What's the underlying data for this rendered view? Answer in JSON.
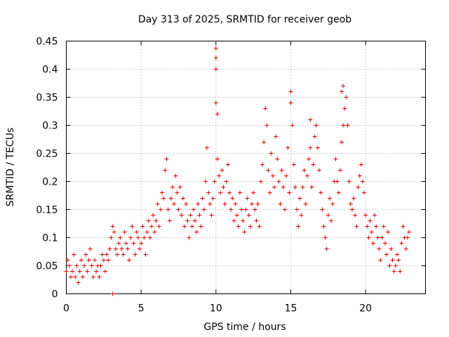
{
  "chart_data": {
    "type": "scatter",
    "title": "Day 313 of 2025, SRMTID for receiver geob",
    "xlabel": "GPS time / hours",
    "ylabel": "SRMTID / TECUs",
    "xlim": [
      0,
      24
    ],
    "ylim": [
      0,
      0.45
    ],
    "xticks": [
      0,
      5,
      10,
      15,
      20
    ],
    "xtick_labels": [
      "0",
      "5",
      "10",
      "15",
      "20"
    ],
    "yticks": [
      0,
      0.05,
      0.1,
      0.15,
      0.2,
      0.25,
      0.3,
      0.35,
      0.4,
      0.45
    ],
    "ytick_labels": [
      "0",
      "0.05",
      "0.1",
      "0.15",
      "0.2",
      "0.25",
      "0.3",
      "0.35",
      "0.4",
      "0.45"
    ],
    "grid": true,
    "marker": "+",
    "color": "#e00000",
    "series": [
      {
        "name": "SRMTID",
        "x": [
          0.0,
          0.1,
          0.2,
          0.3,
          0.4,
          0.5,
          0.6,
          0.7,
          0.8,
          0.9,
          1.0,
          1.1,
          1.2,
          1.3,
          1.4,
          1.5,
          1.6,
          1.7,
          1.8,
          1.9,
          2.0,
          2.1,
          2.2,
          2.3,
          2.4,
          2.5,
          2.6,
          2.7,
          2.8,
          2.9,
          3.0,
          3.1,
          3.2,
          3.3,
          3.4,
          3.5,
          3.6,
          3.7,
          3.8,
          3.9,
          4.0,
          4.1,
          4.2,
          4.3,
          4.4,
          4.5,
          4.6,
          4.7,
          4.8,
          4.9,
          5.0,
          5.1,
          5.2,
          5.3,
          5.4,
          5.5,
          5.6,
          5.7,
          5.8,
          5.9,
          6.0,
          6.1,
          6.2,
          6.3,
          6.4,
          6.5,
          6.6,
          6.7,
          6.8,
          6.9,
          7.0,
          7.1,
          7.2,
          7.3,
          7.4,
          7.5,
          7.6,
          7.7,
          7.8,
          7.9,
          8.0,
          8.1,
          8.2,
          8.3,
          8.4,
          8.5,
          8.6,
          8.7,
          8.8,
          8.9,
          9.0,
          9.1,
          9.2,
          9.3,
          9.4,
          9.5,
          9.6,
          9.7,
          9.8,
          9.9,
          10.0,
          10.1,
          10.2,
          10.3,
          10.4,
          10.5,
          10.6,
          10.7,
          10.8,
          10.9,
          11.0,
          11.1,
          11.2,
          11.3,
          11.4,
          11.5,
          11.6,
          11.7,
          11.8,
          11.9,
          12.0,
          12.1,
          12.2,
          12.3,
          12.4,
          12.5,
          12.6,
          12.7,
          12.8,
          12.9,
          13.0,
          13.1,
          13.2,
          13.3,
          13.4,
          13.5,
          13.6,
          13.7,
          13.8,
          13.9,
          14.0,
          14.1,
          14.2,
          14.3,
          14.4,
          14.5,
          14.6,
          14.7,
          14.8,
          14.9,
          15.0,
          15.1,
          15.2,
          15.3,
          15.4,
          15.5,
          15.6,
          15.7,
          15.8,
          15.9,
          16.0,
          16.1,
          16.2,
          16.3,
          16.4,
          16.5,
          16.6,
          16.7,
          16.8,
          16.9,
          17.0,
          17.1,
          17.2,
          17.3,
          17.4,
          17.5,
          17.6,
          17.7,
          17.8,
          17.9,
          18.0,
          18.1,
          18.2,
          18.3,
          18.4,
          18.5,
          18.6,
          18.7,
          18.8,
          18.9,
          19.0,
          19.1,
          19.2,
          19.3,
          19.4,
          19.5,
          19.6,
          19.7,
          19.8,
          19.9,
          20.0,
          20.1,
          20.2,
          20.3,
          20.4,
          20.5,
          20.6,
          20.7,
          20.8,
          20.9,
          21.0,
          21.1,
          21.2,
          21.3,
          21.4,
          21.5,
          21.6,
          21.7,
          21.8,
          21.9,
          22.0,
          22.1,
          22.2,
          22.3,
          22.4,
          22.5,
          22.6,
          22.7,
          22.8,
          22.9,
          10.0,
          10.0,
          10.0,
          10.1,
          15.0,
          18.5,
          18.4,
          16.3,
          3.1
        ],
        "y": [
          0.04,
          0.06,
          0.05,
          0.03,
          0.04,
          0.07,
          0.03,
          0.05,
          0.02,
          0.04,
          0.06,
          0.03,
          0.05,
          0.07,
          0.04,
          0.06,
          0.08,
          0.05,
          0.03,
          0.06,
          0.04,
          0.05,
          0.03,
          0.05,
          0.07,
          0.06,
          0.04,
          0.07,
          0.06,
          0.08,
          0.1,
          0.12,
          0.11,
          0.08,
          0.07,
          0.09,
          0.1,
          0.08,
          0.07,
          0.11,
          0.09,
          0.08,
          0.06,
          0.1,
          0.12,
          0.09,
          0.07,
          0.11,
          0.1,
          0.08,
          0.09,
          0.12,
          0.1,
          0.07,
          0.11,
          0.13,
          0.1,
          0.12,
          0.14,
          0.11,
          0.13,
          0.16,
          0.12,
          0.15,
          0.18,
          0.17,
          0.22,
          0.24,
          0.15,
          0.13,
          0.17,
          0.19,
          0.16,
          0.21,
          0.18,
          0.15,
          0.19,
          0.14,
          0.17,
          0.12,
          0.16,
          0.13,
          0.1,
          0.14,
          0.12,
          0.15,
          0.13,
          0.11,
          0.16,
          0.14,
          0.12,
          0.17,
          0.15,
          0.2,
          0.26,
          0.18,
          0.16,
          0.14,
          0.17,
          0.2,
          0.34,
          0.24,
          0.21,
          0.18,
          0.22,
          0.19,
          0.16,
          0.2,
          0.23,
          0.18,
          0.15,
          0.17,
          0.13,
          0.16,
          0.14,
          0.12,
          0.18,
          0.15,
          0.13,
          0.11,
          0.15,
          0.17,
          0.14,
          0.12,
          0.16,
          0.18,
          0.15,
          0.13,
          0.16,
          0.12,
          0.2,
          0.23,
          0.27,
          0.33,
          0.3,
          0.22,
          0.18,
          0.25,
          0.21,
          0.19,
          0.28,
          0.24,
          0.2,
          0.16,
          0.22,
          0.19,
          0.15,
          0.21,
          0.26,
          0.18,
          0.34,
          0.3,
          0.23,
          0.19,
          0.15,
          0.12,
          0.17,
          0.14,
          0.19,
          0.22,
          0.16,
          0.21,
          0.24,
          0.26,
          0.19,
          0.23,
          0.28,
          0.3,
          0.26,
          0.22,
          0.18,
          0.15,
          0.12,
          0.1,
          0.08,
          0.14,
          0.17,
          0.13,
          0.16,
          0.2,
          0.24,
          0.2,
          0.18,
          0.22,
          0.27,
          0.3,
          0.33,
          0.35,
          0.3,
          0.2,
          0.16,
          0.15,
          0.17,
          0.14,
          0.12,
          0.19,
          0.21,
          0.23,
          0.2,
          0.18,
          0.14,
          0.12,
          0.1,
          0.13,
          0.11,
          0.09,
          0.14,
          0.12,
          0.1,
          0.08,
          0.06,
          0.1,
          0.12,
          0.09,
          0.07,
          0.11,
          0.05,
          0.08,
          0.06,
          0.04,
          0.05,
          0.07,
          0.06,
          0.04,
          0.09,
          0.12,
          0.1,
          0.08,
          0.1,
          0.11,
          0.437,
          0.42,
          0.4,
          0.32,
          0.36,
          0.37,
          0.36,
          0.31,
          0.0
        ]
      }
    ]
  }
}
